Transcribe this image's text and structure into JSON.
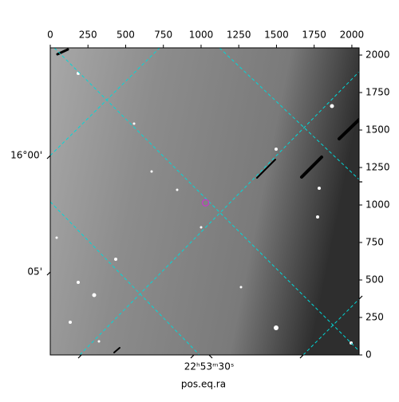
{
  "chart_data": {
    "type": "image",
    "x_axis_label": "pos.eq.ra",
    "xlim": [
      0,
      2048
    ],
    "ylim": [
      0,
      2048
    ],
    "xticks": [
      0,
      250,
      500,
      750,
      1000,
      1250,
      1500,
      1750,
      2000
    ],
    "yticks": [
      0,
      250,
      500,
      750,
      1000,
      1250,
      1500,
      1750,
      2000
    ],
    "dec_tick_labels": [
      "16°00'",
      "05'"
    ],
    "ra_tick_labels": [
      "22ʰ53ᵐ30ˢ"
    ],
    "marker": {
      "x": 1030,
      "y": 1015,
      "color": "#c040c0"
    },
    "grid_color": "#00d8d8"
  }
}
